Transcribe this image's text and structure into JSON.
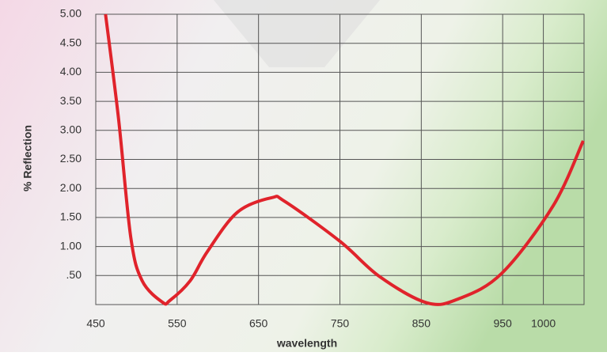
{
  "chart_data": {
    "type": "line",
    "x_label": "wavelength",
    "y_label": "% Reflection",
    "x": [
      462,
      478,
      493,
      507,
      532,
      541,
      566,
      587,
      624,
      666,
      683,
      750,
      799,
      857,
      896,
      949,
      1012,
      1049
    ],
    "series": [
      {
        "name": "Reflection",
        "color": "#e0232b",
        "values": [
          5.0,
          3.2,
          1.16,
          0.41,
          0.04,
          0.07,
          0.41,
          0.91,
          1.59,
          1.84,
          1.77,
          1.09,
          0.48,
          0.03,
          0.1,
          0.54,
          1.7,
          2.82
        ]
      }
    ],
    "xlim": [
      450,
      1050
    ],
    "xticks": [
      450,
      550,
      650,
      750,
      850,
      950,
      1000
    ],
    "ylim": [
      0,
      5
    ],
    "yticks": [
      {
        "value": 0.5,
        "label": ".50"
      },
      {
        "value": 1,
        "label": "1.00"
      },
      {
        "value": 1.5,
        "label": "1.50"
      },
      {
        "value": 2,
        "label": "2.00"
      },
      {
        "value": 2.5,
        "label": "2.50"
      },
      {
        "value": 3,
        "label": "3.00"
      },
      {
        "value": 3.5,
        "label": "3.50"
      },
      {
        "value": 4,
        "label": "4.00"
      },
      {
        "value": 4.5,
        "label": "4.50"
      },
      {
        "value": 5,
        "label": "5.00"
      }
    ],
    "grid": true
  }
}
